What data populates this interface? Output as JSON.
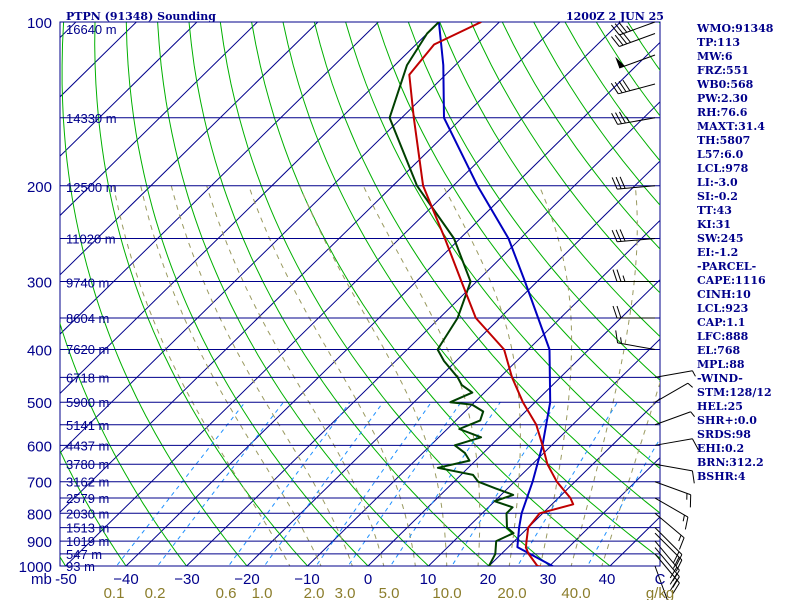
{
  "header": {
    "station": "PTPN (91348) Sounding",
    "time": "1200Z  2 JUN 25"
  },
  "stats": [
    "WMO:91348",
    "TP:113",
    "MW:6",
    "FRZ:551",
    "WB0:568",
    "PW:2.30",
    "RH:76.6",
    "MAXT:31.4",
    "TH:5807",
    "L57:6.0",
    "LCL:978",
    "LI:-3.0",
    "SI:-0.2",
    "TT:43",
    "KI:31",
    "SW:245",
    "EI:-1.2",
    "-PARCEL-",
    "CAPE:1116",
    "CINH:10",
    "LCL:923",
    "CAP:1.1",
    "LFC:888",
    "EL:768",
    "MPL:88",
    "-WIND-",
    "STM:128/12",
    "HEL:25",
    "SHR+:0.0",
    "SRDS:98",
    "EHI:0.2",
    "BRN:312.2",
    "BSHR:4"
  ],
  "colors": {
    "isobar": "#00008b",
    "isotherm": "#00008b",
    "dry_adiabat": "#00b000",
    "moist_adiabat": "#9a9a60",
    "mixing_ratio": "#1e90ff",
    "temperature": "#c00000",
    "dewpoint": "#004000",
    "parcel": "#0000c0",
    "mixing_ratio_labels": "#8b7d2b",
    "text": "#00008b"
  },
  "chart_data": {
    "type": "skew-t",
    "pressure_axis": {
      "label": "mb",
      "ticks": [
        100,
        200,
        300,
        400,
        500,
        600,
        700,
        800,
        900,
        1000
      ],
      "range": [
        1000,
        100
      ],
      "log": true
    },
    "temperature_axis": {
      "unit": "C",
      "ticks": [
        -50,
        -40,
        -30,
        -20,
        -10,
        0,
        10,
        20,
        30,
        40
      ],
      "tick_labels": [
        "-50",
        "−40",
        "−30",
        "−20",
        "−10",
        "0",
        "10",
        "20",
        "30",
        "40"
      ]
    },
    "mixing_ratio_axis": {
      "unit": "g/kg",
      "ticks": [
        "0.1",
        "0.2",
        "0.6",
        "1.0",
        "2.0",
        "3.0",
        "5.0",
        "10.0",
        "20.0",
        "40.0"
      ]
    },
    "height_labels": [
      {
        "p": 103,
        "text": "16640 m"
      },
      {
        "p": 150,
        "text": "14330 m"
      },
      {
        "p": 201,
        "text": "12500 m"
      },
      {
        "p": 250,
        "text": "11020 m"
      },
      {
        "p": 301,
        "text": "9740 m"
      },
      {
        "p": 350,
        "text": "8604 m"
      },
      {
        "p": 399,
        "text": "7620 m"
      },
      {
        "p": 450,
        "text": "6718 m"
      },
      {
        "p": 500,
        "text": "5900 m"
      },
      {
        "p": 550,
        "text": "5141 m"
      },
      {
        "p": 600,
        "text": "4437 m"
      },
      {
        "p": 650,
        "text": "3780 m"
      },
      {
        "p": 700,
        "text": "3162 m"
      },
      {
        "p": 750,
        "text": "2579 m"
      },
      {
        "p": 800,
        "text": "2030 m"
      },
      {
        "p": 850,
        "text": "1513 m"
      },
      {
        "p": 900,
        "text": "1019 m"
      },
      {
        "p": 950,
        "text": "547 m"
      },
      {
        "p": 1000,
        "text": "93 m"
      }
    ],
    "temperature": {
      "name": "",
      "p": [
        1008,
        1000,
        950,
        925,
        900,
        850,
        800,
        770,
        750,
        700,
        650,
        600,
        550,
        500,
        450,
        400,
        350,
        300,
        250,
        200,
        150,
        125,
        110,
        100
      ],
      "t": [
        30.5,
        28.0,
        24.5,
        23.0,
        22.0,
        20.0,
        19.5,
        23.5,
        22.0,
        17.0,
        12.5,
        8.5,
        4.0,
        -2.0,
        -8.0,
        -14.0,
        -24.0,
        -32.5,
        -42.5,
        -55.0,
        -68.0,
        -76.0,
        -77.0,
        -73.0
      ]
    },
    "dewpoint": {
      "name": "",
      "p": [
        1008,
        1000,
        950,
        900,
        870,
        850,
        800,
        780,
        760,
        740,
        720,
        700,
        680,
        660,
        640,
        620,
        600,
        580,
        560,
        540,
        520,
        505,
        500,
        480,
        465,
        450,
        420,
        400,
        350,
        300,
        250,
        200,
        150,
        120,
        105,
        100
      ],
      "t": [
        22.0,
        20.0,
        19.0,
        17.0,
        18.5,
        16.5,
        14.0,
        14.0,
        10.0,
        12.0,
        8.0,
        4.0,
        2.0,
        -5.0,
        -1.0,
        -3.0,
        -6.0,
        -3.0,
        -8.0,
        -6.0,
        -7.0,
        -10.0,
        -14.0,
        -12.0,
        -15.0,
        -17.0,
        -22.0,
        -25.0,
        -27.0,
        -31.0,
        -41.0,
        -56.0,
        -72.0,
        -78.0,
        -80.0,
        -80.0
      ]
    },
    "parcel": {
      "name": "",
      "p": [
        1008,
        923,
        850,
        800,
        700,
        600,
        500,
        400,
        300,
        250,
        200,
        150,
        120,
        100
      ],
      "t": [
        31.4,
        21.5,
        18.5,
        16.5,
        13.0,
        8.5,
        2.5,
        -6.5,
        -22.0,
        -32.0,
        -46.0,
        -63.0,
        -72.0,
        -80.0
      ]
    },
    "winds": [
      {
        "p": 1000,
        "dir": 160,
        "spd": 10
      },
      {
        "p": 950,
        "dir": 140,
        "spd": 20
      },
      {
        "p": 925,
        "dir": 140,
        "spd": 20
      },
      {
        "p": 900,
        "dir": 140,
        "spd": 20
      },
      {
        "p": 870,
        "dir": 135,
        "spd": 20
      },
      {
        "p": 850,
        "dir": 135,
        "spd": 20
      },
      {
        "p": 800,
        "dir": 130,
        "spd": 15
      },
      {
        "p": 750,
        "dir": 120,
        "spd": 15
      },
      {
        "p": 700,
        "dir": 110,
        "spd": 15
      },
      {
        "p": 650,
        "dir": 100,
        "spd": 10
      },
      {
        "p": 600,
        "dir": 80,
        "spd": 10
      },
      {
        "p": 550,
        "dir": 70,
        "spd": 5
      },
      {
        "p": 500,
        "dir": 60,
        "spd": 5
      },
      {
        "p": 450,
        "dir": 80,
        "spd": 5
      },
      {
        "p": 400,
        "dir": 280,
        "spd": 15
      },
      {
        "p": 350,
        "dir": 270,
        "spd": 20
      },
      {
        "p": 300,
        "dir": 270,
        "spd": 25
      },
      {
        "p": 250,
        "dir": 265,
        "spd": 30
      },
      {
        "p": 200,
        "dir": 265,
        "spd": 30
      },
      {
        "p": 150,
        "dir": 260,
        "spd": 35
      },
      {
        "p": 130,
        "dir": 255,
        "spd": 40
      },
      {
        "p": 115,
        "dir": 250,
        "spd": 50
      },
      {
        "p": 105,
        "dir": 250,
        "spd": 40
      },
      {
        "p": 100,
        "dir": 250,
        "spd": 35
      }
    ],
    "grid": true
  }
}
